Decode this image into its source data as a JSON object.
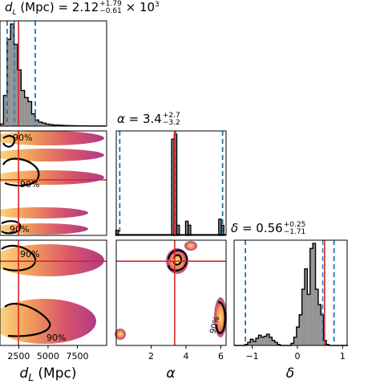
{
  "chart_data": {
    "type": "corner",
    "parameters": [
      "d_L (Mpc)",
      "α",
      "δ"
    ],
    "xlabels": [
      "d_L (Mpc)",
      "α",
      "δ"
    ],
    "titles": [
      {
        "symbol": "d_L (Mpc)",
        "median": "2.12",
        "plus": "+1.79",
        "minus": "−0.61",
        "scale": "× 10^3"
      },
      {
        "symbol": "α",
        "median": "3.4",
        "plus": "+2.7",
        "minus": "−3.2"
      },
      {
        "symbol": "δ",
        "median": "0.56",
        "plus": "+0.25",
        "minus": "−1.71"
      }
    ],
    "truths": {
      "d_L": 2480,
      "alpha": 3.35,
      "delta": 0.6
    },
    "quantiles": {
      "d_L": [
        1510,
        2120,
        3910
      ],
      "alpha": [
        0.2,
        3.4,
        6.1
      ],
      "delta": [
        -1.15,
        0.56,
        0.81
      ]
    },
    "ranges": {
      "d_L": [
        900,
        10000
      ],
      "alpha": [
        0,
        6.3
      ],
      "delta": [
        -1.4,
        1.1
      ]
    },
    "ticks": {
      "d_L": [
        "2500",
        "5000",
        "7500"
      ],
      "alpha": [
        "2",
        "4",
        "6"
      ],
      "delta": [
        "−1",
        "0",
        "1"
      ]
    },
    "hist_d_L": {
      "bin_edges_start": 900,
      "bin_width": 300,
      "counts": [
        0.02,
        0.3,
        0.85,
        1.0,
        0.8,
        0.55,
        0.35,
        0.28,
        0.24,
        0.12,
        0.06,
        0.04,
        0.03,
        0.02,
        0.015,
        0.01,
        0.01,
        0.008,
        0.006,
        0.005,
        0.004,
        0.003,
        0.003,
        0.002,
        0.002,
        0.001,
        0.001,
        0.001,
        0.001,
        0.001
      ]
    },
    "hist_alpha": {
      "bins": [
        {
          "x": 0.05,
          "h": 0.05
        },
        {
          "x": 3.25,
          "h": 0.95
        },
        {
          "x": 3.4,
          "h": 1.0
        },
        {
          "x": 3.55,
          "h": 0.1
        },
        {
          "x": 4.05,
          "h": 0.14
        },
        {
          "x": 4.2,
          "h": 0.1
        },
        {
          "x": 5.95,
          "h": 0.16
        },
        {
          "x": 6.1,
          "h": 0.1
        }
      ]
    },
    "hist_delta": {
      "bin_edges_start": -1.4,
      "bin_width": 0.06,
      "counts": [
        0.0,
        0.0,
        0.0,
        0.0,
        0.01,
        0.03,
        0.06,
        0.04,
        0.07,
        0.1,
        0.08,
        0.09,
        0.11,
        0.08,
        0.05,
        0.03,
        0.01,
        0.0,
        0.0,
        0.0,
        0.0,
        0.02,
        0.08,
        0.18,
        0.3,
        0.55,
        0.75,
        0.5,
        0.95,
        1.0,
        0.55,
        0.4,
        0.3,
        0.05,
        0.01,
        0.0,
        0.0,
        0.0,
        0.0,
        0.0,
        0.0,
        0.0
      ]
    },
    "contour_labels": [
      "90%",
      "90%",
      "90%",
      "90%",
      "90%"
    ],
    "colors": {
      "truth": "#d62728",
      "quantile": "#1f77b4",
      "hist_fill": "#808080"
    }
  }
}
